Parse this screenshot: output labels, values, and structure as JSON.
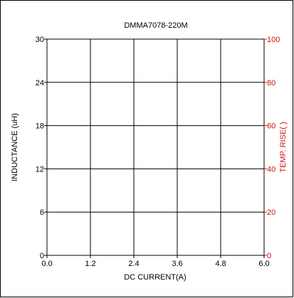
{
  "chart_data": {
    "type": "line",
    "title": "DMMA7078-220M",
    "xlabel": "DC CURRENT(A)",
    "ylabel_left": "INDUCTANCE (uH)",
    "ylabel_right": "TEMP. RISE(  )",
    "x_ticks": [
      "0.0",
      "1.2",
      "2.4",
      "3.6",
      "4.8",
      "6.0"
    ],
    "y_left_ticks": [
      "0",
      "6",
      "12",
      "18",
      "24",
      "30"
    ],
    "y_right_ticks": [
      "0",
      "20",
      "40",
      "60",
      "80",
      "100"
    ],
    "xlim": [
      0,
      6
    ],
    "ylim_left": [
      0,
      30
    ],
    "ylim_right": [
      0,
      100
    ],
    "grid": true,
    "series": []
  },
  "colors": {
    "axis": "#000000",
    "right_axis": "#cc1111",
    "grid": "#000000"
  }
}
